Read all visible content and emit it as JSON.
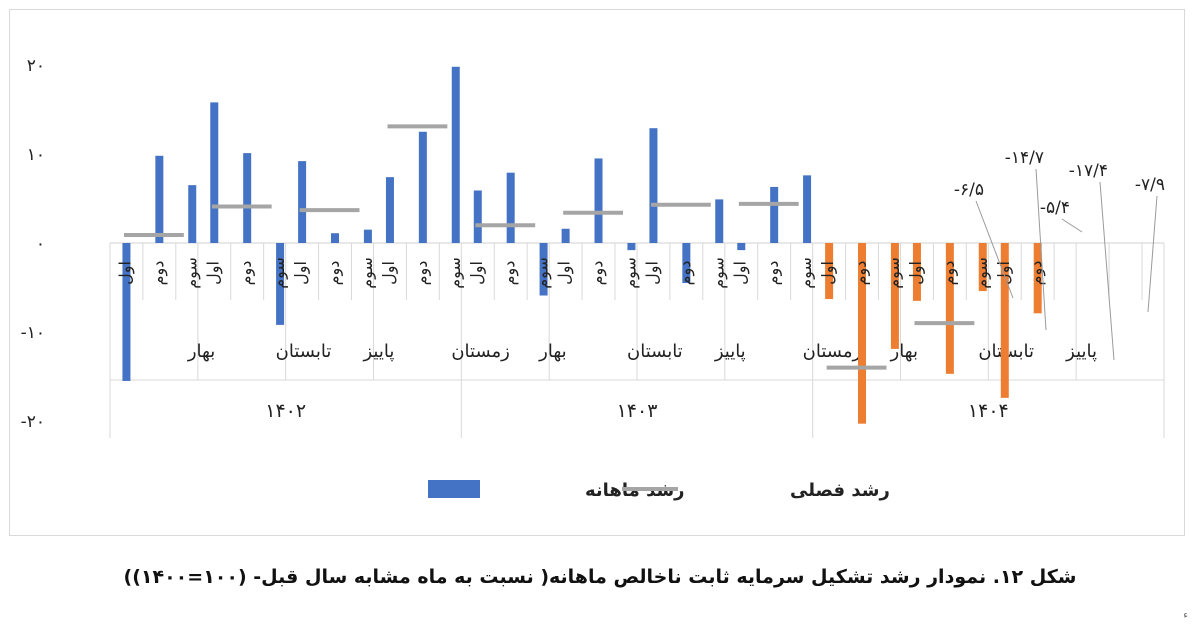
{
  "chart_data": {
    "type": "bar",
    "title": "",
    "xlabel": "",
    "ylabel": "",
    "ylim": [
      -20,
      20
    ],
    "yticks": [
      {
        "value": 20,
        "label": "۲۰"
      },
      {
        "value": 10,
        "label": "۱۰"
      },
      {
        "value": 0,
        "label": "۰"
      },
      {
        "value": -10,
        "label": "-۱۰"
      },
      {
        "value": -20,
        "label": "-۲۰"
      }
    ],
    "months": [
      "اول",
      "دوم",
      "سوم"
    ],
    "years": [
      "۱۴۰۲",
      "۱۴۰۳",
      "۱۴۰۴"
    ],
    "seasons": [
      {
        "year": "۱۴۰۲",
        "name": "بهار",
        "monthly": [
          -15.5,
          9.8,
          6.5
        ],
        "quarterly": 0.9
      },
      {
        "year": "۱۴۰۲",
        "name": "تابستان",
        "monthly": [
          15.8,
          10.1,
          -9.2
        ],
        "quarterly": 4.1
      },
      {
        "year": "۱۴۰۲",
        "name": "پاییز",
        "monthly": [
          9.2,
          1.1,
          1.5
        ],
        "quarterly": 3.7
      },
      {
        "year": "۱۴۰۲",
        "name": "زمستان",
        "monthly": [
          7.4,
          12.5,
          19.8
        ],
        "quarterly": 13.1
      },
      {
        "year": "۱۴۰۳",
        "name": "بهار",
        "monthly": [
          5.9,
          7.9,
          -5.9
        ],
        "quarterly": 2.0
      },
      {
        "year": "۱۴۰۳",
        "name": "تابستان",
        "monthly": [
          1.6,
          9.5,
          -0.8
        ],
        "quarterly": 3.4
      },
      {
        "year": "۱۴۰۳",
        "name": "پاییز",
        "monthly": [
          12.9,
          -4.5,
          4.9
        ],
        "quarterly": 4.3
      },
      {
        "year": "۱۴۰۳",
        "name": "زمستان",
        "monthly": [
          -0.8,
          6.3,
          7.6
        ],
        "quarterly": 4.4
      },
      {
        "year": "۱۴۰۴",
        "name": "بهار",
        "monthly": [
          -6.3,
          -20.3,
          -11.9
        ],
        "quarterly": -14.0
      },
      {
        "year": "۱۴۰۴",
        "name": "تابستان",
        "monthly": [
          -6.5,
          -14.7,
          -5.4
        ],
        "quarterly": -9.0
      },
      {
        "year": "۱۴۰۴",
        "name": "پاییز",
        "monthly": [
          -17.4,
          -7.9
        ],
        "quarterly": null
      }
    ],
    "data_labels": [
      {
        "text": "-۶/۵",
        "season": 9,
        "month": 0
      },
      {
        "text": "-۱۴/۷",
        "season": 9,
        "month": 1
      },
      {
        "text": "-۵/۴",
        "season": 9,
        "month": 2
      },
      {
        "text": "-۱۷/۴",
        "season": 10,
        "month": 0
      },
      {
        "text": "-۷/۹",
        "season": 10,
        "month": 1
      }
    ],
    "series": [
      {
        "name": "رشد ماهانه",
        "kind": "bar"
      },
      {
        "name": "رشد فصلی",
        "kind": "marker"
      }
    ],
    "legend_position": "bottom",
    "colors": {
      "bar_past": "#4472c4",
      "bar_current": "#ed7d31",
      "quarterly_marker": "#a5a5a5",
      "axis": "#d9d9d9",
      "text": "#222222"
    }
  },
  "caption": "شکل ۱۲. نمودار رشد تشکیل سرمایه ثابت ناخالص ماهانه( نسبت به ماه مشابه سال قبل- (۱۰۰=۱۴۰۰))",
  "footnote": "ء"
}
